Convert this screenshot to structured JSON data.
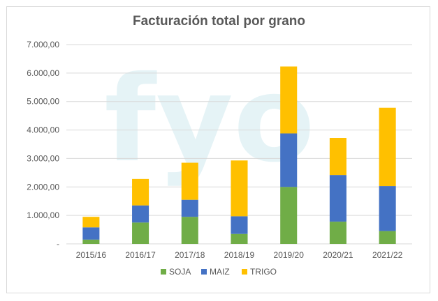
{
  "chart_data": {
    "type": "bar",
    "stacked": true,
    "title": "Facturación total por grano",
    "watermark": "fyo",
    "categories": [
      "2015/16",
      "2016/17",
      "2017/18",
      "2018/19",
      "2019/20",
      "2020/21",
      "2021/22"
    ],
    "series": [
      {
        "name": "SOJA",
        "color": "#70ad47",
        "values": [
          150,
          750,
          950,
          350,
          2000,
          780,
          450
        ]
      },
      {
        "name": "MAIZ",
        "color": "#4472c4",
        "values": [
          430,
          600,
          600,
          620,
          1880,
          1640,
          1580
        ]
      },
      {
        "name": "TRIGO",
        "color": "#ffc000",
        "values": [
          370,
          930,
          1300,
          1960,
          2350,
          1300,
          2750
        ]
      }
    ],
    "ylim": [
      0,
      7000
    ],
    "yticks": [
      0,
      1000,
      2000,
      3000,
      4000,
      5000,
      6000,
      7000
    ],
    "ytick_labels": [
      "-",
      "1.000,00",
      "2.000,00",
      "3.000,00",
      "4.000,00",
      "5.000,00",
      "6.000,00",
      "7.000,00"
    ],
    "xlabel": "",
    "ylabel": "",
    "grid": true,
    "legend_position": "bottom"
  }
}
